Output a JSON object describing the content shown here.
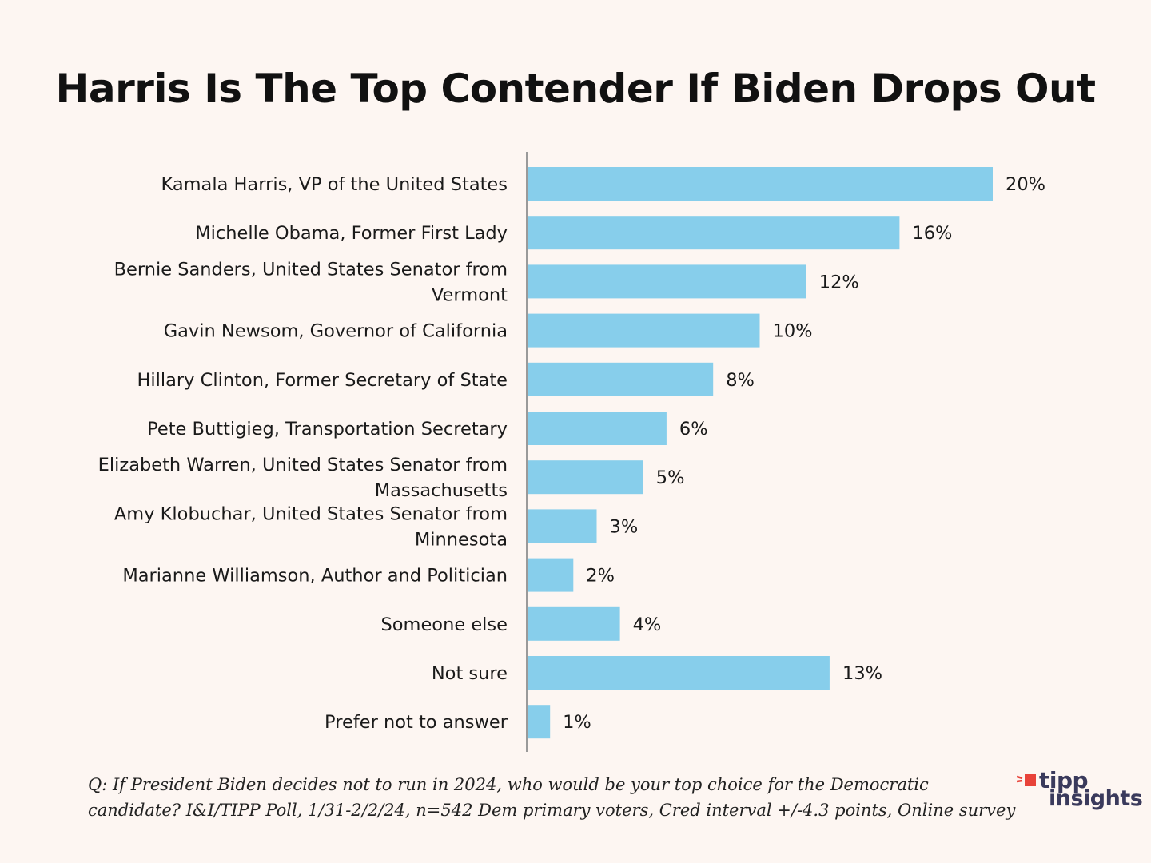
{
  "chart_data": {
    "type": "bar",
    "orientation": "horizontal",
    "title": "Harris Is The Top Contender If Biden Drops Out",
    "categories": [
      [
        "Kamala Harris, VP of the United States"
      ],
      [
        "Michelle Obama, Former First Lady"
      ],
      [
        "Bernie Sanders, United States Senator from",
        "Vermont"
      ],
      [
        "Gavin Newsom, Governor of California"
      ],
      [
        "Hillary Clinton, Former Secretary of State"
      ],
      [
        "Pete Buttigieg, Transportation Secretary"
      ],
      [
        "Elizabeth Warren, United States Senator from",
        "Massachusetts"
      ],
      [
        "Amy Klobuchar, United States Senator from",
        "Minnesota"
      ],
      [
        "Marianne Williamson, Author and Politician"
      ],
      [
        "Someone else"
      ],
      [
        "Not sure"
      ],
      [
        "Prefer not to answer"
      ]
    ],
    "values": [
      20,
      16,
      12,
      10,
      8,
      6,
      5,
      3,
      2,
      4,
      13,
      1
    ],
    "value_labels": [
      "20%",
      "16%",
      "12%",
      "10%",
      "8%",
      "6%",
      "5%",
      "3%",
      "2%",
      "4%",
      "13%",
      "1%"
    ],
    "unit": "%",
    "xlim": [
      0,
      20
    ],
    "bar_color": "#87ceeb",
    "grid": false,
    "legend": "none"
  },
  "footnote": {
    "line1": "Q: If President Biden decides not to run in 2024, who would be your top choice for the Democratic",
    "line2": "candidate? I&I/TIPP Poll, 1/31-2/2/24, n=542 Dem primary  voters, Cred interval +/-4.3 points, Online survey"
  },
  "logo": {
    "line1": "tipp",
    "line2": "insights",
    "accent_color": "#e8433a",
    "text_color": "#3a3a5c"
  }
}
